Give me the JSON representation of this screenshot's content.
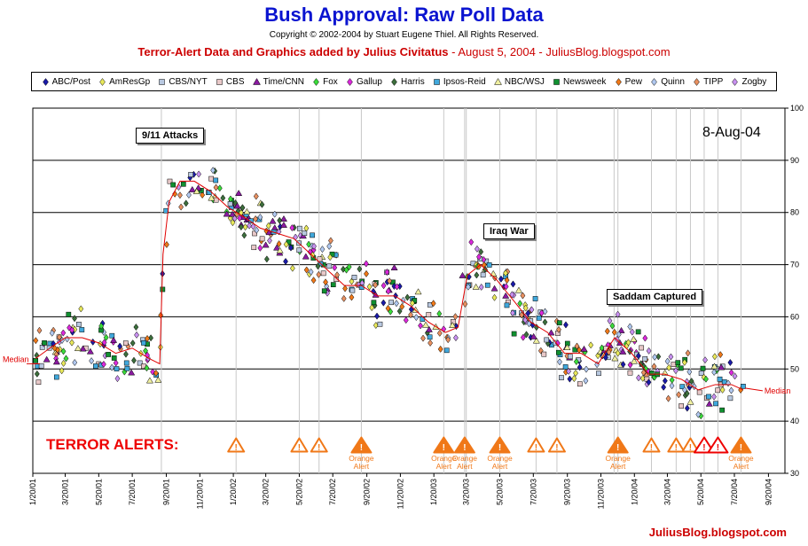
{
  "title": "Bush Approval:  Raw Poll Data",
  "copyright": "Copyright © 2002-2004 by Stuart Eugene Thiel.  All Rights Reserved.",
  "subtitle_bold": "Terror-Alert Data and Graphics added by Julius Civitatus",
  "subtitle_rest": " - August 5, 2004 - JuliusBlog.blogspot.com",
  "date_stamp": "8-Aug-04",
  "terror_label": "TERROR ALERTS:",
  "footer": "JuliusBlog.blogspot.com",
  "colors": {
    "title": "#0a14d0",
    "accent_red": "#cc0000",
    "alert_orange": "#f07818",
    "alert_red": "#ee0000",
    "median_line": "#e00000"
  },
  "chart_data": {
    "type": "scatter",
    "ylim": [
      30,
      100
    ],
    "yticks": [
      30,
      40,
      50,
      60,
      70,
      80,
      90,
      100
    ],
    "x_range": [
      "2001-01-20",
      "2004-10-20"
    ],
    "x_tick_labels": [
      "1/20/01",
      "3/20/01",
      "5/20/01",
      "7/20/01",
      "9/20/01",
      "11/20/01",
      "1/20/02",
      "3/20/02",
      "5/20/02",
      "7/20/02",
      "9/20/02",
      "11/20/02",
      "1/20/03",
      "3/20/03",
      "5/20/03",
      "7/20/03",
      "9/20/03",
      "11/20/03",
      "1/20/04",
      "3/20/04",
      "5/20/04",
      "7/20/04",
      "9/20/04"
    ],
    "vertical_gridlines_at_alerts": true,
    "legend_position": "top",
    "series": [
      {
        "name": "ABC/Post",
        "marker": "diamond",
        "color": "#1a1aa8"
      },
      {
        "name": "AmResGp",
        "marker": "diamond",
        "color": "#e8e85a"
      },
      {
        "name": "CBS/NYT",
        "marker": "square",
        "color": "#b8c8e0"
      },
      {
        "name": "CBS",
        "marker": "square",
        "color": "#e8c8c8"
      },
      {
        "name": "Time/CNN",
        "marker": "triangle",
        "color": "#8a1aa0"
      },
      {
        "name": "Fox",
        "marker": "diamond",
        "color": "#3adc3a"
      },
      {
        "name": "Gallup",
        "marker": "diamond",
        "color": "#dc28dc"
      },
      {
        "name": "Harris",
        "marker": "diamond",
        "color": "#3c6e3c"
      },
      {
        "name": "Ipsos-Reid",
        "marker": "square",
        "color": "#40a8dc"
      },
      {
        "name": "NBC/WSJ",
        "marker": "triangle",
        "color": "#f0f0a0"
      },
      {
        "name": "Newsweek",
        "marker": "square",
        "color": "#109030"
      },
      {
        "name": "Pew",
        "marker": "diamond",
        "color": "#f07818"
      },
      {
        "name": "Quinn",
        "marker": "diamond",
        "color": "#b0c8f0"
      },
      {
        "name": "TIPP",
        "marker": "diamond",
        "color": "#e89060"
      },
      {
        "name": "Zogby",
        "marker": "diamond",
        "color": "#c890f0"
      }
    ],
    "median": [
      [
        "2001-01-25",
        52
      ],
      [
        "2001-02-20",
        54
      ],
      [
        "2001-03-20",
        56
      ],
      [
        "2001-04-20",
        56
      ],
      [
        "2001-05-20",
        55
      ],
      [
        "2001-06-20",
        53
      ],
      [
        "2001-07-20",
        54
      ],
      [
        "2001-08-20",
        52
      ],
      [
        "2001-09-08",
        51
      ],
      [
        "2001-09-14",
        72
      ],
      [
        "2001-09-25",
        82
      ],
      [
        "2001-10-15",
        86
      ],
      [
        "2001-11-10",
        86
      ],
      [
        "2001-12-10",
        84
      ],
      [
        "2002-01-10",
        81
      ],
      [
        "2002-02-10",
        79
      ],
      [
        "2002-03-10",
        77
      ],
      [
        "2002-04-10",
        76
      ],
      [
        "2002-05-10",
        75
      ],
      [
        "2002-06-10",
        72
      ],
      [
        "2002-07-10",
        69
      ],
      [
        "2002-08-10",
        66
      ],
      [
        "2002-09-10",
        66
      ],
      [
        "2002-10-10",
        64
      ],
      [
        "2002-11-10",
        64
      ],
      [
        "2002-12-10",
        62
      ],
      [
        "2003-01-10",
        59
      ],
      [
        "2003-02-10",
        57
      ],
      [
        "2003-03-05",
        58
      ],
      [
        "2003-03-22",
        68
      ],
      [
        "2003-04-15",
        70
      ],
      [
        "2003-05-15",
        67
      ],
      [
        "2003-06-15",
        63
      ],
      [
        "2003-07-15",
        59
      ],
      [
        "2003-08-15",
        57
      ],
      [
        "2003-09-15",
        53
      ],
      [
        "2003-10-15",
        53
      ],
      [
        "2003-11-15",
        51
      ],
      [
        "2003-12-15",
        56
      ],
      [
        "2004-01-15",
        53
      ],
      [
        "2004-02-15",
        49
      ],
      [
        "2004-03-15",
        49
      ],
      [
        "2004-04-15",
        48
      ],
      [
        "2004-05-15",
        46
      ],
      [
        "2004-06-15",
        47
      ],
      [
        "2004-07-15",
        47
      ],
      [
        "2004-08-05",
        46
      ]
    ],
    "median_labels": [
      {
        "text": "Median",
        "date": "2001-01-20",
        "value": 51
      },
      {
        "text": "Median",
        "date": "2004-08-05",
        "value": 46
      }
    ],
    "events": [
      {
        "label": "9/11 Attacks",
        "date": "2001-09-11"
      },
      {
        "label": "Iraq War",
        "date": "2003-03-20"
      },
      {
        "label": "Saddam Captured",
        "date": "2003-12-14"
      }
    ],
    "terror_alerts": [
      {
        "date": "2002-01-25",
        "level": "elevated"
      },
      {
        "date": "2002-05-20",
        "level": "elevated"
      },
      {
        "date": "2002-06-25",
        "level": "elevated"
      },
      {
        "date": "2002-09-10",
        "level": "orange",
        "label": "Orange Alert"
      },
      {
        "date": "2003-02-07",
        "level": "orange",
        "label": "Orange Alert"
      },
      {
        "date": "2003-03-17",
        "level": "orange",
        "label": "Orange Alert"
      },
      {
        "date": "2003-05-20",
        "level": "orange",
        "label": "Orange Alert"
      },
      {
        "date": "2003-07-25",
        "level": "elevated"
      },
      {
        "date": "2003-09-01",
        "level": "elevated"
      },
      {
        "date": "2003-12-21",
        "level": "orange",
        "label": "Orange Alert"
      },
      {
        "date": "2004-02-20",
        "level": "elevated"
      },
      {
        "date": "2004-04-05",
        "level": "elevated"
      },
      {
        "date": "2004-05-01",
        "level": "elevated"
      },
      {
        "date": "2004-05-26",
        "level": "red"
      },
      {
        "date": "2004-06-20",
        "level": "red"
      },
      {
        "date": "2004-08-01",
        "level": "orange",
        "label": "Orange Alert"
      }
    ]
  }
}
